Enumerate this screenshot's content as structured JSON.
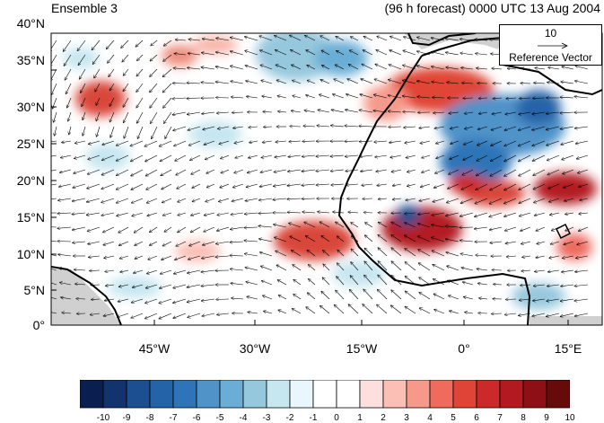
{
  "title_left": "Ensemble 3",
  "title_right": "(96 h forecast) 0000 UTC 13 Aug 2004",
  "reference_vector": {
    "magnitude": "10",
    "label": "Reference Vector"
  },
  "lat_labels": [
    "40°N",
    "35°N",
    "30°N",
    "25°N",
    "20°N",
    "15°N",
    "10°N",
    "5°N",
    "0°"
  ],
  "lon_labels": [
    "45°W",
    "30°W",
    "15°W",
    "0°",
    "15°E"
  ],
  "colorbar": {
    "labels": [
      "-10",
      "-9",
      "-8",
      "-7",
      "-6",
      "-5",
      "-4",
      "-3",
      "-2",
      "-1",
      "0",
      "1",
      "2",
      "3",
      "4",
      "5",
      "6",
      "7",
      "8",
      "9",
      "10"
    ],
    "colors": [
      "#0a1f4f",
      "#12336e",
      "#1b4f91",
      "#2563a8",
      "#2d74b8",
      "#4f93c9",
      "#6aaed6",
      "#96c8dd",
      "#c6e6f0",
      "#e9f6fb",
      "#ffffff",
      "#ffffff",
      "#fde0de",
      "#fbbfb5",
      "#f7998a",
      "#ee6b5e",
      "#e04436",
      "#cc2a2a",
      "#b31a20",
      "#8e0f16",
      "#660a0a"
    ]
  },
  "map_extent": {
    "lon_min": -57,
    "lon_max": 18,
    "lat_min": 0,
    "lat_max": 40
  },
  "colors": {
    "ocean_bg": "#ffffff",
    "land_gray": "#d0d0d0",
    "coast": "#000000"
  }
}
